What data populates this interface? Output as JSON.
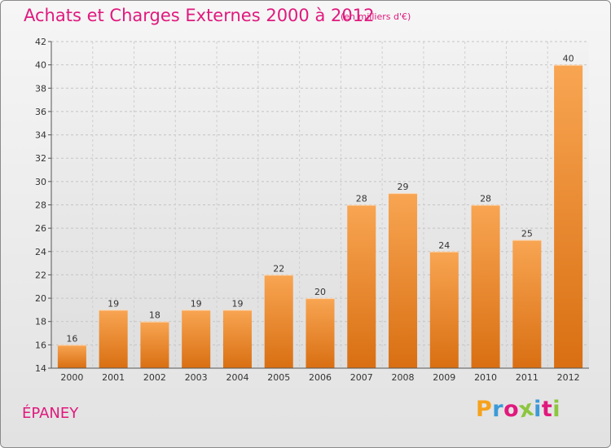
{
  "header": {
    "title": "Achats et Charges Externes 2000 à 2012",
    "subtitle": "(en milliers d'€)"
  },
  "footer": {
    "commune": "ÉPANEY",
    "logo_letters": [
      "P",
      "r",
      "o",
      "x",
      "i",
      "t",
      "i"
    ],
    "logo_colors": [
      "#f6a21c",
      "#3c9ad8",
      "#e0197d",
      "#8cc63f",
      "#3c9ad8",
      "#e0197d",
      "#8cc63f"
    ]
  },
  "colors": {
    "accent": "#e0197d",
    "bar_light": "#f8a552",
    "bar_dark": "#d96f12"
  },
  "chart_data": {
    "type": "bar",
    "title": "Achats et Charges Externes 2000 à 2012",
    "subtitle": "(en milliers d'€)",
    "categories": [
      "2000",
      "2001",
      "2002",
      "2003",
      "2004",
      "2005",
      "2006",
      "2007",
      "2008",
      "2009",
      "2010",
      "2011",
      "2012"
    ],
    "values": [
      16,
      19,
      18,
      19,
      19,
      22,
      20,
      28,
      29,
      24,
      28,
      25,
      40
    ],
    "ylim": [
      14,
      42
    ],
    "yticks": [
      14,
      16,
      18,
      20,
      22,
      24,
      26,
      28,
      30,
      32,
      34,
      36,
      38,
      40,
      42
    ],
    "grid": true,
    "xlabel": "",
    "ylabel": ""
  }
}
